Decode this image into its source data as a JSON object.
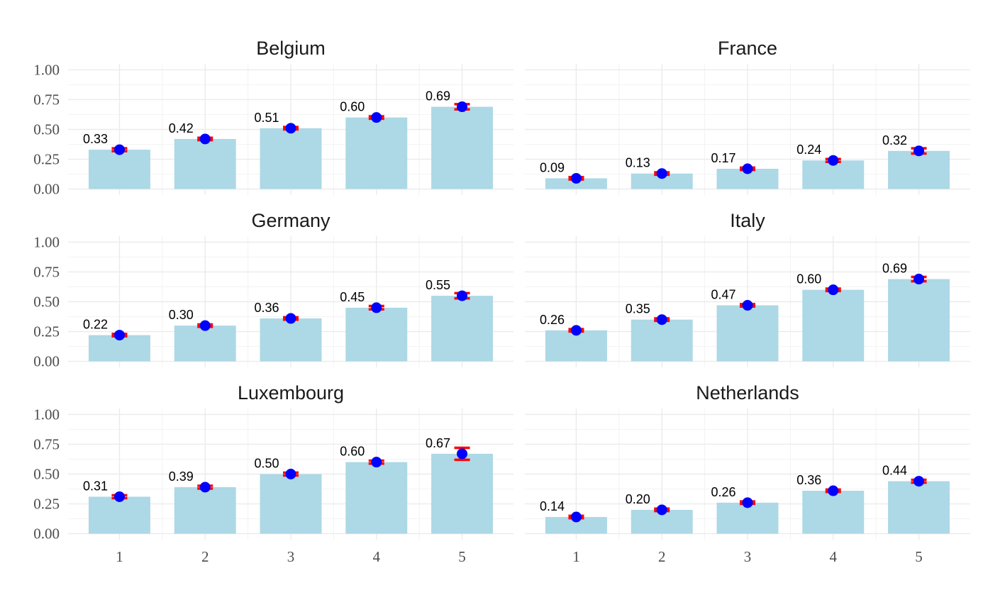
{
  "chart_data": {
    "type": "bar",
    "categories": [
      "1",
      "2",
      "3",
      "4",
      "5"
    ],
    "ylim": [
      0,
      1.0
    ],
    "yticks": [
      "0.00",
      "0.25",
      "0.50",
      "0.75",
      "1.00"
    ],
    "grid": true,
    "colors": {
      "bar": "#add8e6",
      "point": "#0000ff",
      "errorbar": "#ff0000",
      "grid": "#ebebeb"
    },
    "panels": [
      {
        "title": "Belgium",
        "values": [
          0.33,
          0.42,
          0.51,
          0.6,
          0.69
        ],
        "labels": [
          "0.33",
          "0.42",
          "0.51",
          "0.60",
          "0.69"
        ],
        "err": [
          0.012,
          0.01,
          0.01,
          0.01,
          0.022
        ]
      },
      {
        "title": "France",
        "values": [
          0.09,
          0.13,
          0.17,
          0.24,
          0.32
        ],
        "labels": [
          "0.09",
          "0.13",
          "0.17",
          "0.24",
          "0.32"
        ],
        "err": [
          0.01,
          0.01,
          0.01,
          0.012,
          0.022
        ]
      },
      {
        "title": "Germany",
        "values": [
          0.22,
          0.3,
          0.36,
          0.45,
          0.55
        ],
        "labels": [
          "0.22",
          "0.30",
          "0.36",
          "0.45",
          "0.55"
        ],
        "err": [
          0.01,
          0.01,
          0.01,
          0.014,
          0.022
        ]
      },
      {
        "title": "Italy",
        "values": [
          0.26,
          0.35,
          0.47,
          0.6,
          0.69
        ],
        "labels": [
          "0.26",
          "0.35",
          "0.47",
          "0.60",
          "0.69"
        ],
        "err": [
          0.01,
          0.01,
          0.01,
          0.01,
          0.018
        ]
      },
      {
        "title": "Luxembourg",
        "values": [
          0.31,
          0.39,
          0.5,
          0.6,
          0.67
        ],
        "labels": [
          "0.31",
          "0.39",
          "0.50",
          "0.60",
          "0.67"
        ],
        "err": [
          0.012,
          0.012,
          0.012,
          0.012,
          0.05
        ]
      },
      {
        "title": "Netherlands",
        "values": [
          0.14,
          0.2,
          0.26,
          0.36,
          0.44
        ],
        "labels": [
          "0.14",
          "0.20",
          "0.26",
          "0.36",
          "0.44"
        ],
        "err": [
          0.01,
          0.01,
          0.01,
          0.01,
          0.012
        ]
      }
    ]
  }
}
